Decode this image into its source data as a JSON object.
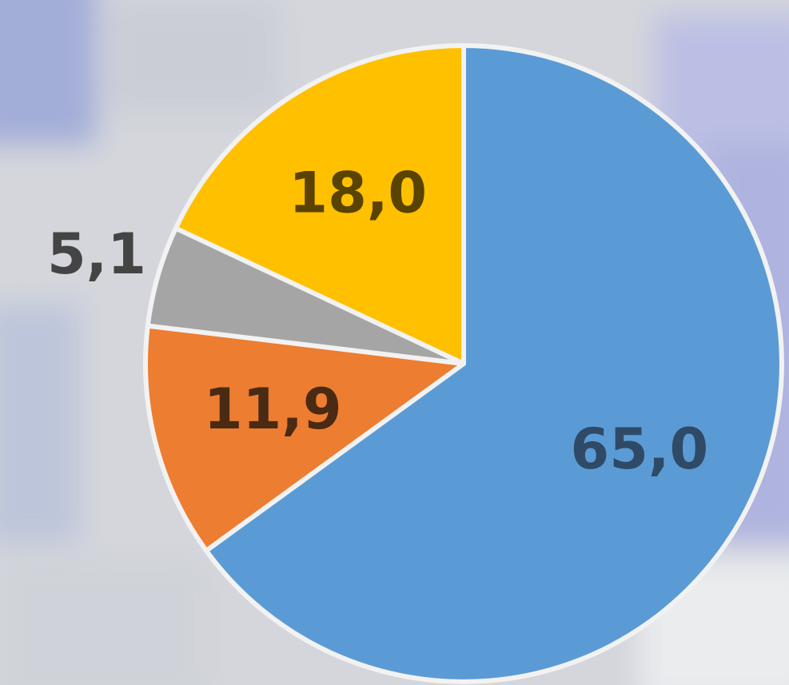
{
  "chart_data": {
    "type": "pie",
    "categories": [
      null,
      null,
      null,
      null
    ],
    "values": [
      65.0,
      11.9,
      5.1,
      18.0
    ],
    "value_labels": [
      "65,0",
      "11,9",
      "5,1",
      "18,0"
    ],
    "colors": [
      "#5b9bd5",
      "#ed7d31",
      "#a5a5a5",
      "#ffc000"
    ]
  }
}
